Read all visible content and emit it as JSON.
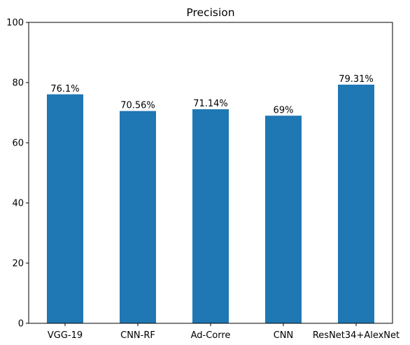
{
  "chart_data": {
    "type": "bar",
    "title": "Precision",
    "xlabel": "",
    "ylabel": "",
    "categories": [
      "VGG-19",
      "CNN-RF",
      "Ad-Corre",
      "CNN",
      "ResNet34+AlexNet"
    ],
    "values": [
      76.1,
      70.56,
      71.14,
      69,
      79.31
    ],
    "value_labels": [
      "76.1%",
      "70.56%",
      "71.14%",
      "69%",
      "79.31%"
    ],
    "ylim": [
      0,
      100
    ],
    "yticks": [
      0,
      20,
      40,
      60,
      80,
      100
    ],
    "ytick_labels": [
      "0",
      "20",
      "40",
      "60",
      "80",
      "100"
    ],
    "grid": false,
    "bar_color": "#1f77b4"
  }
}
